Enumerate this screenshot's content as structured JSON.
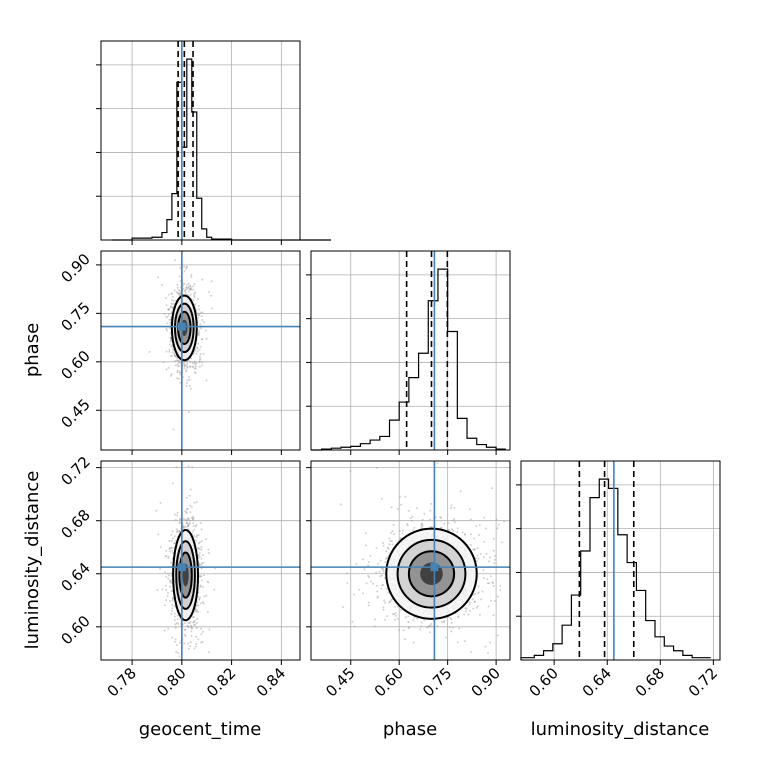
{
  "chart_data": {
    "type": "corner",
    "parameters": [
      "geocent_time",
      "phase",
      "luminosity_distance"
    ],
    "grid": true,
    "truth_color": "#4682b4",
    "ticks": {
      "geocent_time": [
        "0.78",
        "0.80",
        "0.82",
        "0.84"
      ],
      "phase": [
        "0.45",
        "0.60",
        "0.75",
        "0.90"
      ],
      "luminosity_distance": [
        "0.60",
        "0.64",
        "0.68",
        "0.72"
      ]
    },
    "ranges": {
      "geocent_time": [
        0.7675,
        0.8475
      ],
      "phase": [
        0.327,
        0.943
      ],
      "luminosity_distance": [
        0.575,
        0.725
      ]
    },
    "truths": {
      "geocent_time": 0.8,
      "phase": 0.709,
      "luminosity_distance": 0.645
    },
    "quantiles": {
      "geocent_time": [
        0.7985,
        0.801,
        0.8045
      ],
      "phase": [
        0.623,
        0.7,
        0.749
      ],
      "luminosity_distance": [
        0.619,
        0.638,
        0.66
      ]
    },
    "histograms": {
      "geocent_time": {
        "x": [
          0.772,
          0.78,
          0.788,
          0.792,
          0.794,
          0.796,
          0.798,
          0.8,
          0.802,
          0.804,
          0.806,
          0.808,
          0.81,
          0.812,
          0.816,
          0.82,
          0.828,
          0.844
        ],
        "values": [
          0,
          2,
          3,
          8,
          22,
          50,
          170,
          100,
          195,
          138,
          45,
          12,
          3,
          1,
          1,
          0,
          0,
          0
        ]
      },
      "phase": {
        "x": [
          0.327,
          0.36,
          0.39,
          0.42,
          0.45,
          0.48,
          0.51,
          0.54,
          0.57,
          0.6,
          0.63,
          0.66,
          0.69,
          0.72,
          0.75,
          0.78,
          0.81,
          0.84,
          0.87,
          0.9
        ],
        "values": [
          0,
          1,
          2,
          3,
          4,
          7,
          11,
          15,
          33,
          53,
          80,
          107,
          165,
          200,
          131,
          35,
          13,
          6,
          3,
          1
        ]
      },
      "luminosity_distance": {
        "x": [
          0.575,
          0.585,
          0.592,
          0.599,
          0.606,
          0.613,
          0.62,
          0.627,
          0.634,
          0.641,
          0.648,
          0.655,
          0.662,
          0.669,
          0.676,
          0.683,
          0.69,
          0.697,
          0.704,
          0.711
        ],
        "values": [
          1,
          2,
          4,
          7,
          15,
          28,
          47,
          70,
          78,
          74,
          54,
          42,
          30,
          17,
          10,
          6,
          4,
          2,
          1,
          1
        ]
      }
    },
    "samples_2d": {
      "geocent_time__phase": {
        "center": [
          0.801,
          0.705
        ],
        "sigma": [
          0.0025,
          0.05
        ]
      },
      "geocent_time__luminosity_distance": {
        "center": [
          0.8015,
          0.639
        ],
        "sigma": [
          0.0025,
          0.017
        ]
      },
      "phase__luminosity_distance": {
        "center": [
          0.7,
          0.64
        ],
        "sigma": [
          0.07,
          0.017
        ]
      }
    }
  }
}
